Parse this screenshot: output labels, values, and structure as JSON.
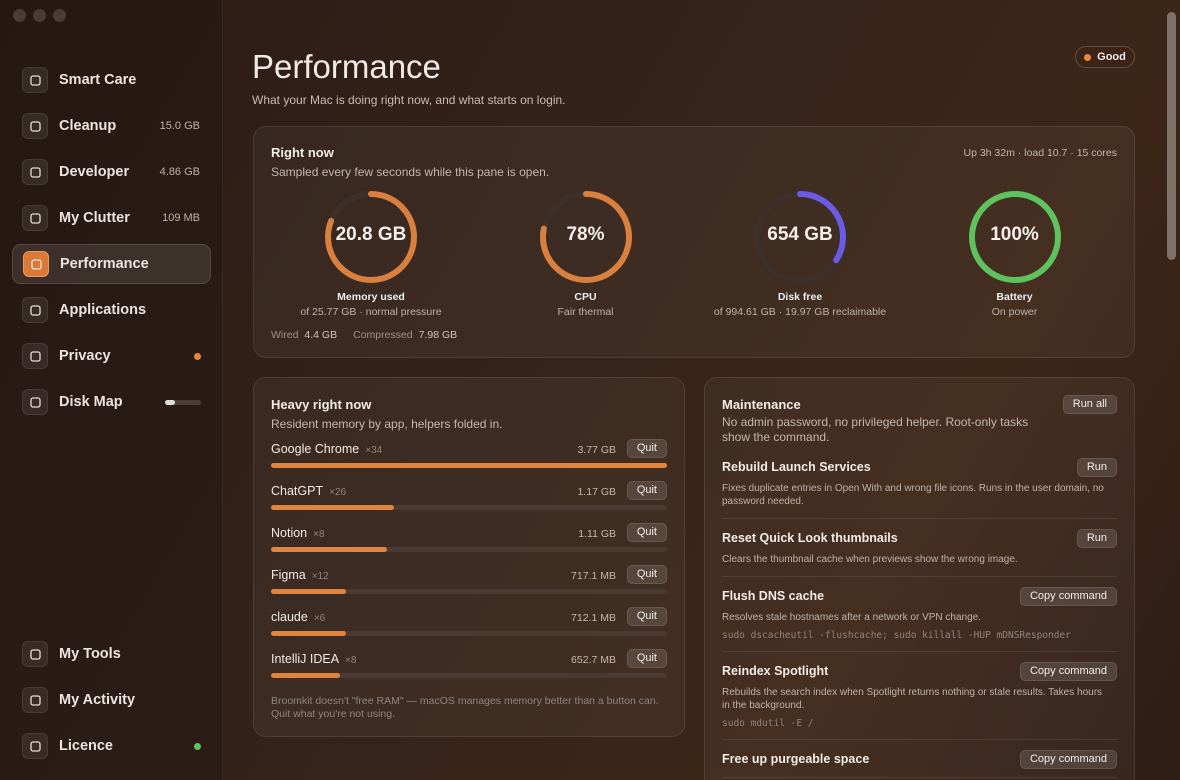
{
  "sidebar": {
    "items": [
      {
        "label": "Smart Care"
      },
      {
        "label": "Cleanup",
        "detail": "15.0 GB"
      },
      {
        "label": "Developer",
        "detail": "4.86 GB"
      },
      {
        "label": "My Clutter",
        "detail": "109 MB"
      },
      {
        "label": "Performance",
        "selected": true
      },
      {
        "label": "Applications"
      },
      {
        "label": "Privacy",
        "dot": "#e8893a"
      },
      {
        "label": "Disk Map",
        "progress": true
      }
    ],
    "bottom_items": [
      {
        "label": "My Tools"
      },
      {
        "label": "My Activity"
      },
      {
        "label": "Licence",
        "dot": "#5ec35e"
      }
    ]
  },
  "header": {
    "title": "Performance",
    "subtitle": "What your Mac is doing right now, and what starts on login.",
    "status": "Good"
  },
  "right_now": {
    "title": "Right now",
    "subtitle": "Sampled every few seconds while this pane is open.",
    "meta": "Up 3h 32m · load 10.7 · 15 cores",
    "gauges": [
      {
        "value": "20.8 GB",
        "label": "Memory used",
        "detail": "of 25.77 GB · normal pressure",
        "color": "#d9803f"
      },
      {
        "value": "78%",
        "label": "CPU",
        "detail": "Fair thermal",
        "color": "#d9803f"
      },
      {
        "value": "654 GB",
        "label": "Disk free",
        "detail": "of 994.61 GB · 19.97 GB reclaimable",
        "color": "#6a5ce6"
      },
      {
        "value": "100%",
        "label": "Battery",
        "detail": "On power",
        "color": "#5ec35e"
      }
    ],
    "stats": [
      {
        "label": "Wired",
        "value": "4.4 GB"
      },
      {
        "label": "Compressed",
        "value": "7.98 GB"
      }
    ]
  },
  "heavy": {
    "title": "Heavy right now",
    "subtitle": "Resident memory by app, helpers folded in.",
    "apps": [
      {
        "name": "Google Chrome",
        "count": "×34",
        "memory": "3.77 GB",
        "action": "Quit"
      },
      {
        "name": "ChatGPT",
        "count": "×26",
        "memory": "1.17 GB",
        "action": "Quit"
      },
      {
        "name": "Notion",
        "count": "×8",
        "memory": "1.11 GB",
        "action": "Quit"
      },
      {
        "name": "Figma",
        "count": "×12",
        "memory": "717.1 MB",
        "action": "Quit"
      },
      {
        "name": "claude",
        "count": "×6",
        "memory": "712.1 MB",
        "action": "Quit"
      },
      {
        "name": "IntelliJ IDEA",
        "count": "×8",
        "memory": "652.7 MB",
        "action": "Quit"
      }
    ],
    "footnote": "Broomkit doesn't \"free RAM\" — macOS manages memory better than a button can. Quit what you're not using."
  },
  "maintenance": {
    "title": "Maintenance",
    "action": "Run all",
    "subtitle": "No admin password, no privileged helper. Root-only tasks show the command.",
    "tasks": [
      {
        "title": "Rebuild Launch Services",
        "description": "Fixes duplicate entries in Open With and wrong file icons. Runs in the user domain, no password needed.",
        "action": "Run"
      },
      {
        "title": "Reset Quick Look thumbnails",
        "description": "Clears the thumbnail cache when previews show the wrong image.",
        "action": "Run"
      },
      {
        "title": "Flush DNS cache",
        "description": "Resolves stale hostnames after a network or VPN change.",
        "command": "sudo dscacheutil -flushcache; sudo killall -HUP mDNSResponder",
        "action": "Copy command"
      },
      {
        "title": "Reindex Spotlight",
        "description": "Rebuilds the search index when Spotlight returns nothing or stale results. Takes hours in the background.",
        "command": "sudo mdutil -E /",
        "action": "Copy command"
      },
      {
        "title": "Free up purgeable space",
        "action": "Copy command"
      }
    ]
  }
}
